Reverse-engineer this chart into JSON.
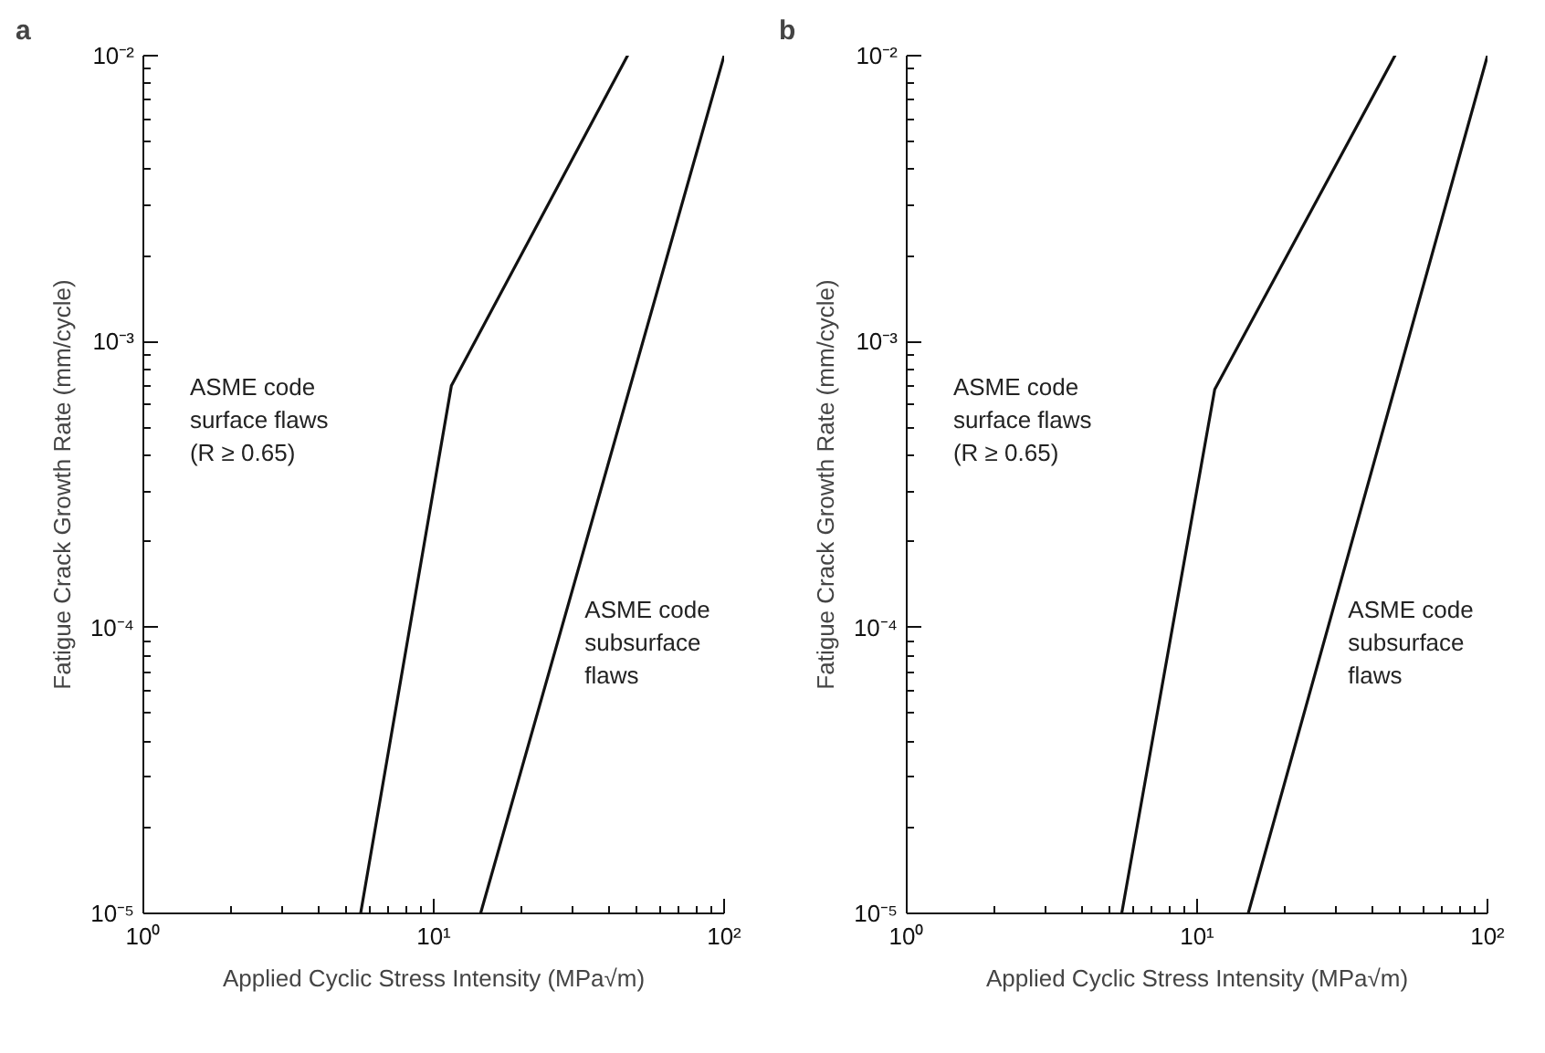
{
  "chart_data": [
    {
      "type": "line",
      "title": "a",
      "xlabel": "Applied Cyclic Stress Intensity (MPa√m)",
      "ylabel": "Fatigue Crack Growth Rate (mm/cycle)",
      "log": "xy",
      "grid": false,
      "marker": "none",
      "line_style": "solid",
      "series": [
        {
          "color": "#111111",
          "x": [
            5.6,
            11.5,
            46.5
          ],
          "values": [
            1e-05,
            0.0007,
            0.01
          ]
        },
        {
          "color": "#111111",
          "x": [
            14.5,
            100
          ],
          "values": [
            1e-05,
            0.01
          ]
        }
      ],
      "xlim": [
        1,
        100
      ],
      "ylim": [
        1e-05,
        0.01
      ],
      "xticks": [
        {
          "value": 1,
          "label": "10⁰"
        },
        {
          "value": 10,
          "label": "10¹"
        },
        {
          "value": 100,
          "label": "10²"
        }
      ],
      "yticks": [
        {
          "value": 1e-05,
          "label": "10⁻⁵"
        },
        {
          "value": 0.0001,
          "label": "10⁻⁴"
        },
        {
          "value": 0.001,
          "label": "10⁻³"
        },
        {
          "value": 0.01,
          "label": "10⁻²"
        }
      ],
      "annotations": [
        "ASME code\nsurface flaws\n(R ≥ 0.65)",
        "ASME code\nsubsurface\nflaws"
      ]
    },
    {
      "type": "line",
      "title": "b",
      "xlabel": "Applied Cyclic Stress Intensity (MPa√m)",
      "ylabel": "Fatigue Crack Growth Rate (mm/cycle)",
      "log": "xy",
      "grid": false,
      "marker": "none",
      "line_style": "solid",
      "series": [
        {
          "color": "#111111",
          "x": [
            5.5,
            11.5,
            48
          ],
          "values": [
            1e-05,
            0.00068,
            0.01
          ]
        },
        {
          "color": "#111111",
          "x": [
            15,
            100
          ],
          "values": [
            1e-05,
            0.01
          ]
        }
      ],
      "xlim": [
        1,
        100
      ],
      "ylim": [
        1e-05,
        0.01
      ],
      "xticks": [
        {
          "value": 1,
          "label": "10⁰"
        },
        {
          "value": 10,
          "label": "10¹"
        },
        {
          "value": 100,
          "label": "10²"
        }
      ],
      "yticks": [
        {
          "value": 1e-05,
          "label": "10⁻⁵"
        },
        {
          "value": 0.0001,
          "label": "10⁻⁴"
        },
        {
          "value": 0.001,
          "label": "10⁻³"
        },
        {
          "value": 0.01,
          "label": "10⁻²"
        }
      ],
      "annotations": [
        "ASME code\nsurface flaws\n(R ≥ 0.65)",
        "ASME code\nsubsurface\nflaws"
      ]
    }
  ]
}
